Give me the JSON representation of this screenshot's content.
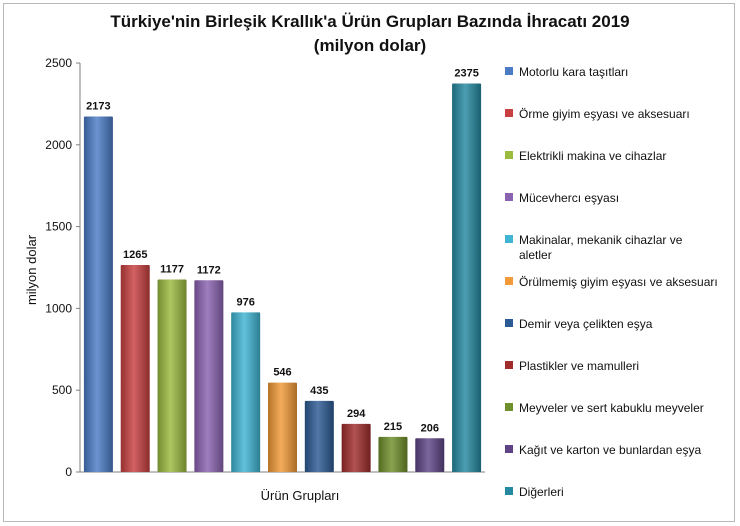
{
  "chart_data": {
    "type": "bar",
    "title": "Türkiye'nin Birleşik Krallık'a  Ürün Grupları Bazında İhracatı 2019",
    "subtitle": "(milyon dolar)",
    "xlabel": "Ürün Grupları",
    "ylabel": "milyon dolar",
    "ylim": [
      0,
      2500
    ],
    "yticks": [
      0,
      500,
      1000,
      1500,
      2000,
      2500
    ],
    "grid": false,
    "legend_position": "right",
    "categories": [
      "Motorlu kara taşıtları",
      "Örme giyim eşyası ve aksesuarı",
      "Elektrikli makina ve cihazlar",
      "Mücevhercı eşyası",
      "Makinalar, mekanik cihazlar ve aletler",
      "Örülmemiş giyim eşyası ve aksesuarı",
      "Demir veya çelikten eşya",
      "Plastikler ve mamulleri",
      "Meyveler ve sert kabuklu meyveler",
      "Kağıt ve karton ve bunlardan eşya",
      "Diğerleri"
    ],
    "legend_lines": [
      [
        "Motorlu kara taşıtları"
      ],
      [
        "Örme giyim eşyası ve aksesuarı"
      ],
      [
        "Elektrikli makina ve cihazlar"
      ],
      [
        "Mücevhercı eşyası"
      ],
      [
        "Makinalar, mekanik cihazlar ve",
        "aletler"
      ],
      [
        "Örülmemiş giyim eşyası ve aksesuarı"
      ],
      [
        "Demir veya çelikten eşya"
      ],
      [
        "Plastikler ve mamulleri"
      ],
      [
        "Meyveler ve sert kabuklu meyveler"
      ],
      [
        "Kağıt ve karton ve bunlardan eşya"
      ],
      [
        "Diğerleri"
      ]
    ],
    "values": [
      2173,
      1265,
      1177,
      1172,
      976,
      546,
      435,
      294,
      215,
      206,
      2375
    ],
    "colors": [
      "#4a7cc6",
      "#c84040",
      "#9bbb3f",
      "#8a62b0",
      "#3fb5d3",
      "#f29a37",
      "#2c5a94",
      "#a02c2c",
      "#6e8f2a",
      "#5e4486",
      "#2589a0"
    ]
  }
}
